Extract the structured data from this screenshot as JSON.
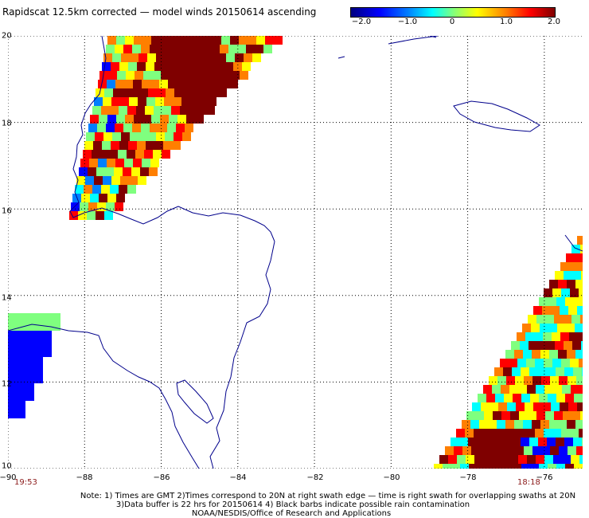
{
  "title": "Rapidscat 12.5km corrected — model winds 20150614 ascending",
  "colorbar": {
    "ticks": [
      {
        "label": "−2.0",
        "value": -2.0
      },
      {
        "label": "−1.0",
        "value": -1.0
      },
      {
        "label": "0",
        "value": 0
      },
      {
        "label": "1.0",
        "value": 1.0
      },
      {
        "label": "2.0",
        "value": 2.0
      }
    ],
    "colors": [
      "#00007f",
      "#0000ff",
      "#007fff",
      "#00ffff",
      "#7fff7f",
      "#ffff00",
      "#ff7f00",
      "#ff0000",
      "#7f0000"
    ]
  },
  "map": {
    "lon_range": [
      -90,
      -75
    ],
    "lat_range": [
      10,
      20
    ],
    "lat_labels": [
      {
        "label": "20",
        "value": 20
      },
      {
        "label": "18",
        "value": 18
      },
      {
        "label": "16",
        "value": 16
      },
      {
        "label": "14",
        "value": 14
      },
      {
        "label": "12",
        "value": 12
      },
      {
        "label": "10",
        "value": 10
      }
    ],
    "lon_labels": [
      {
        "label": "−90",
        "value": -90
      },
      {
        "label": "−88",
        "value": -88
      },
      {
        "label": "−86",
        "value": -86
      },
      {
        "label": "−84",
        "value": -84
      },
      {
        "label": "−82",
        "value": -82
      },
      {
        "label": "−80",
        "value": -80
      },
      {
        "label": "−78",
        "value": -78
      },
      {
        "label": "−76",
        "value": -76
      }
    ],
    "swath_times": {
      "left": "19:53",
      "right": "18:18"
    }
  },
  "notes": {
    "line1": "Note: 1) Times are GMT 2)Times correspond to 20N at right swath edge — time is right swath for overlapping swaths at 20N",
    "line2": "3)Data buffer is 22 hrs for 20150614 4) Black barbs indicate possible rain contamination",
    "line3": "NOAA/NESDIS/Office of Research and Applications"
  }
}
